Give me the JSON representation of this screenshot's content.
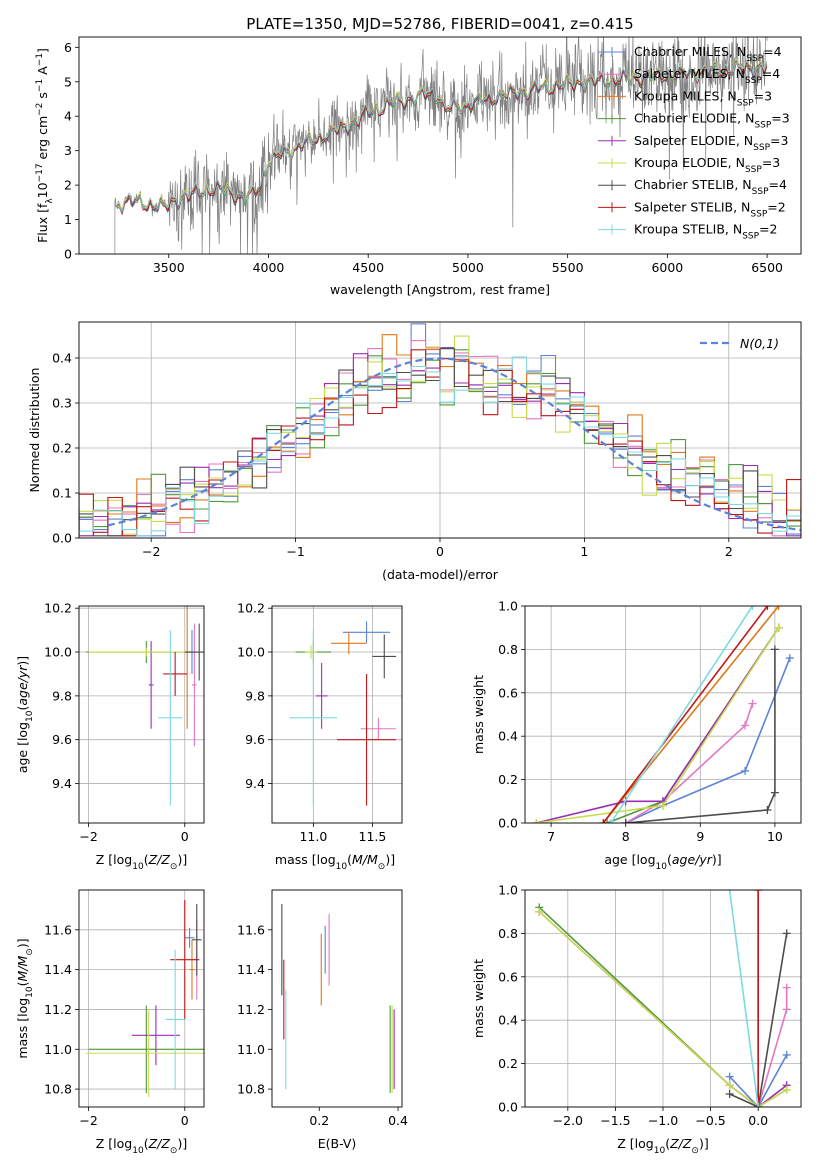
{
  "title": "PLATE=1350, MJD=52786, FIBERID=0041, z=0.415",
  "colors": {
    "chabrier_miles": "#5b84d6",
    "salpeter_miles": "#e377c2",
    "kroupa_miles": "#e0781a",
    "chabrier_elodie": "#4f9a3c",
    "salpeter_elodie": "#9a2fb5",
    "kroupa_elodie": "#c9dc4d",
    "chabrier_stelib": "#4d4d4d",
    "salpeter_stelib": "#c01818",
    "kroupa_stelib": "#7fd9e0",
    "data": "#808080",
    "normal": "#5b84d6"
  },
  "chart_data": [
    {
      "id": "spectrum",
      "type": "line",
      "xlabel": "wavelength [Angstrom, rest frame]",
      "ylabel": "Flux [f_λ 10^-17 erg cm^-2 s^-1 A^-1]",
      "xlim": [
        3050,
        6670
      ],
      "ylim": [
        0,
        6.3
      ],
      "xticks": [
        3500,
        4000,
        4500,
        5000,
        5500,
        6000,
        6500
      ],
      "yticks": [
        0,
        1,
        2,
        3,
        4,
        5,
        6
      ],
      "legend_position": "upper-right",
      "continuum_anchor_points": {
        "wavelength": [
          3230,
          3280,
          3400,
          3480,
          3520,
          3600,
          3700,
          3800,
          3870,
          3920,
          3960,
          4000,
          4100,
          4200,
          4300,
          4400,
          4500,
          4600,
          4700,
          4800,
          4860,
          4880,
          5000,
          5200,
          5400,
          5600,
          5800,
          6000,
          6200,
          6400,
          6500
        ],
        "flux": [
          1.35,
          1.55,
          1.45,
          1.35,
          1.55,
          1.7,
          1.9,
          1.85,
          1.6,
          1.75,
          2.0,
          2.7,
          3.0,
          3.25,
          3.5,
          3.75,
          4.1,
          4.35,
          4.5,
          4.65,
          4.6,
          4.2,
          4.35,
          4.65,
          4.85,
          5.0,
          5.1,
          5.2,
          5.3,
          5.4,
          5.45
        ]
      },
      "series": [
        {
          "name": "Chabrier MILES, N_SSP=4",
          "color_key": "chabrier_miles"
        },
        {
          "name": "Salpeter MILES, N_SSP=4",
          "color_key": "salpeter_miles"
        },
        {
          "name": "Kroupa MILES, N_SSP=3",
          "color_key": "kroupa_miles"
        },
        {
          "name": "Chabrier ELODIE, N_SSP=3",
          "color_key": "chabrier_elodie"
        },
        {
          "name": "Salpeter ELODIE, N_SSP=3",
          "color_key": "salpeter_elodie"
        },
        {
          "name": "Kroupa ELODIE, N_SSP=3",
          "color_key": "kroupa_elodie"
        },
        {
          "name": "Chabrier STELIB, N_SSP=4",
          "color_key": "chabrier_stelib"
        },
        {
          "name": "Salpeter STELIB, N_SSP=2",
          "color_key": "salpeter_stelib"
        },
        {
          "name": "Kroupa STELIB, N_SSP=2",
          "color_key": "kroupa_stelib"
        }
      ]
    },
    {
      "id": "residuals",
      "type": "histogram",
      "xlabel": "(data-model)/error",
      "ylabel": "Normed distribution",
      "xlim": [
        -2.5,
        2.5
      ],
      "ylim": [
        0,
        0.48
      ],
      "xticks": [
        -2,
        -1,
        0,
        1,
        2
      ],
      "yticks": [
        0.0,
        0.1,
        0.2,
        0.3,
        0.4
      ],
      "bin_width": 0.1,
      "grid": true,
      "legend_position": "upper-right",
      "gaussian_label": "N(0,1)",
      "envelope": {
        "x": [
          -2.5,
          -2.0,
          -1.7,
          -1.5,
          -1.2,
          -1.0,
          -0.8,
          -0.6,
          -0.5,
          -0.3,
          -0.1,
          0.0,
          0.2,
          0.5,
          0.8,
          1.0,
          1.3,
          1.5,
          1.8,
          2.0,
          2.3,
          2.5
        ],
        "y": [
          0.025,
          0.06,
          0.09,
          0.13,
          0.18,
          0.25,
          0.26,
          0.33,
          0.36,
          0.33,
          0.39,
          0.4,
          0.37,
          0.33,
          0.31,
          0.27,
          0.2,
          0.15,
          0.12,
          0.1,
          0.06,
          0.04
        ]
      }
    },
    {
      "id": "age_vs_Z",
      "type": "errorbar",
      "xlabel": "Z [log10(Z/Z⊙)]",
      "ylabel": "age  [log10(age/yr)]",
      "xlim": [
        -2.2,
        0.4
      ],
      "ylim": [
        9.22,
        10.21
      ],
      "xticks": [
        -2,
        0
      ],
      "yticks": [
        9.4,
        9.6,
        9.8,
        10.0,
        10.2
      ],
      "grid": true,
      "points": [
        {
          "c": "chabrier_miles",
          "x": 0.15,
          "y": 10.0,
          "xerr": 0.05,
          "yerr": 0.1
        },
        {
          "c": "salpeter_miles",
          "x": 0.2,
          "y": 9.85,
          "xerr": 0.05,
          "yerr": 0.28
        },
        {
          "c": "kroupa_miles",
          "x": 0.05,
          "y": 10.0,
          "xerr": 0.07,
          "yerr": 0.35
        },
        {
          "c": "chabrier_elodie",
          "x": -0.8,
          "y": 10.0,
          "xerr": 1.25,
          "yerr": 0.05
        },
        {
          "c": "salpeter_elodie",
          "x": -0.7,
          "y": 9.85,
          "xerr": 0.05,
          "yerr": 0.2
        },
        {
          "c": "kroupa_elodie",
          "x": -0.8,
          "y": 10.0,
          "xerr": 1.2,
          "yerr": 0.02
        },
        {
          "c": "chabrier_stelib",
          "x": 0.3,
          "y": 10.0,
          "xerr": 0.3,
          "yerr": 0.13
        },
        {
          "c": "salpeter_stelib",
          "x": -0.2,
          "y": 9.9,
          "xerr": 0.25,
          "yerr": 0.1
        },
        {
          "c": "kroupa_stelib",
          "x": -0.3,
          "y": 9.7,
          "xerr": 0.25,
          "yerr": 0.4
        }
      ]
    },
    {
      "id": "age_vs_mass",
      "type": "errorbar",
      "xlabel": "mass [log10(M/M⊙)]",
      "ylabel": "",
      "xlim": [
        10.65,
        11.75
      ],
      "ylim": [
        9.22,
        10.21
      ],
      "xticks": [
        11.0,
        11.5
      ],
      "yticks": [
        9.4,
        9.6,
        9.8,
        10.0,
        10.2
      ],
      "grid": true,
      "points": [
        {
          "c": "chabrier_miles",
          "x": 11.45,
          "y": 10.09,
          "xerr": 0.2,
          "yerr": 0.05
        },
        {
          "c": "salpeter_miles",
          "x": 11.55,
          "y": 9.65,
          "xerr": 0.15,
          "yerr": 0.05
        },
        {
          "c": "kroupa_miles",
          "x": 11.3,
          "y": 10.04,
          "xerr": 0.15,
          "yerr": 0.05
        },
        {
          "c": "chabrier_elodie",
          "x": 11.0,
          "y": 10.0,
          "xerr": 0.15,
          "yerr": 0.05
        },
        {
          "c": "salpeter_elodie",
          "x": 11.07,
          "y": 9.8,
          "xerr": 0.05,
          "yerr": 0.15
        },
        {
          "c": "kroupa_elodie",
          "x": 10.98,
          "y": 10.0,
          "xerr": 0.05,
          "yerr": 0.03
        },
        {
          "c": "chabrier_stelib",
          "x": 11.6,
          "y": 9.98,
          "xerr": 0.1,
          "yerr": 0.1
        },
        {
          "c": "salpeter_stelib",
          "x": 11.45,
          "y": 9.6,
          "xerr": 0.25,
          "yerr": 0.3
        },
        {
          "c": "kroupa_stelib",
          "x": 11.0,
          "y": 9.7,
          "xerr": 0.2,
          "yerr": 0.4
        }
      ]
    },
    {
      "id": "massweight_vs_age",
      "type": "line",
      "xlabel": "age  [log10(age/yr)]",
      "ylabel": "mass weight",
      "xlim": [
        6.65,
        10.35
      ],
      "ylim": [
        0,
        1.0
      ],
      "xticks": [
        7,
        8,
        9,
        10
      ],
      "yticks": [
        0.0,
        0.2,
        0.4,
        0.6,
        0.8,
        1.0
      ],
      "grid": true,
      "series": [
        {
          "c": "chabrier_miles",
          "x": [
            8.0,
            8.5,
            9.6,
            10.2
          ],
          "y": [
            0.0,
            0.08,
            0.24,
            0.76
          ]
        },
        {
          "c": "salpeter_miles",
          "x": [
            8.0,
            8.5,
            9.6,
            9.7
          ],
          "y": [
            0.0,
            0.1,
            0.45,
            0.55
          ]
        },
        {
          "c": "kroupa_miles",
          "x": [
            7.7,
            10.05
          ],
          "y": [
            0.0,
            1.0
          ]
        },
        {
          "c": "chabrier_elodie",
          "x": [
            7.75,
            8.5,
            10.05
          ],
          "y": [
            0.0,
            0.1,
            0.9
          ]
        },
        {
          "c": "salpeter_elodie",
          "x": [
            6.8,
            8.0,
            8.5,
            10.05
          ],
          "y": [
            0.0,
            0.1,
            0.1,
            0.9
          ]
        },
        {
          "c": "kroupa_elodie",
          "x": [
            6.8,
            8.5,
            10.05
          ],
          "y": [
            0.0,
            0.08,
            0.9
          ]
        },
        {
          "c": "chabrier_stelib",
          "x": [
            8.0,
            9.9,
            10.0,
            10.0
          ],
          "y": [
            0.0,
            0.06,
            0.14,
            0.8
          ]
        },
        {
          "c": "salpeter_stelib",
          "x": [
            7.7,
            9.9
          ],
          "y": [
            0.0,
            1.0
          ]
        },
        {
          "c": "kroupa_stelib",
          "x": [
            7.8,
            9.7
          ],
          "y": [
            0.0,
            1.0
          ]
        }
      ]
    },
    {
      "id": "mass_vs_Z",
      "type": "errorbar",
      "xlabel": "Z [log10(Z/Z⊙)]",
      "ylabel": "mass [log10(M/M⊙)]",
      "xlim": [
        -2.2,
        0.4
      ],
      "ylim": [
        10.71,
        11.8
      ],
      "xticks": [
        -2,
        0
      ],
      "yticks": [
        10.8,
        11.0,
        11.2,
        11.4,
        11.6
      ],
      "grid": true,
      "points": [
        {
          "c": "chabrier_miles",
          "x": 0.1,
          "y": 11.56,
          "xerr": 0.1,
          "yerr": 0.05
        },
        {
          "c": "salpeter_miles",
          "x": 0.25,
          "y": 11.45,
          "xerr": 0.05,
          "yerr": 0.2
        },
        {
          "c": "kroupa_miles",
          "x": 0.15,
          "y": 11.4,
          "xerr": 0.05,
          "yerr": 0.15
        },
        {
          "c": "chabrier_elodie",
          "x": -0.8,
          "y": 11.0,
          "xerr": 1.2,
          "yerr": 0.22
        },
        {
          "c": "salpeter_elodie",
          "x": -0.6,
          "y": 11.07,
          "xerr": 0.5,
          "yerr": 0.15
        },
        {
          "c": "kroupa_elodie",
          "x": -0.75,
          "y": 10.98,
          "xerr": 1.3,
          "yerr": 0.22
        },
        {
          "c": "chabrier_stelib",
          "x": 0.25,
          "y": 11.55,
          "xerr": 0.1,
          "yerr": 0.18
        },
        {
          "c": "salpeter_stelib",
          "x": 0.0,
          "y": 11.45,
          "xerr": 0.3,
          "yerr": 0.3
        },
        {
          "c": "kroupa_stelib",
          "x": -0.2,
          "y": 11.15,
          "xerr": 0.2,
          "yerr": 0.35
        }
      ]
    },
    {
      "id": "mass_vs_EBV",
      "type": "errorbar",
      "xlabel": "E(B-V)",
      "ylabel": "",
      "xlim": [
        0.08,
        0.41
      ],
      "ylim": [
        10.71,
        11.8
      ],
      "xticks": [
        0.2,
        0.4
      ],
      "yticks": [
        10.8,
        11.0,
        11.2,
        11.4,
        11.6
      ],
      "grid": false,
      "points": [
        {
          "c": "chabrier_miles",
          "x": 0.215,
          "y": 11.5,
          "yerr": 0.12
        },
        {
          "c": "salpeter_miles",
          "x": 0.225,
          "y": 11.5,
          "yerr": 0.18
        },
        {
          "c": "kroupa_miles",
          "x": 0.205,
          "y": 11.4,
          "yerr": 0.18
        },
        {
          "c": "chabrier_elodie",
          "x": 0.38,
          "y": 11.0,
          "yerr": 0.22
        },
        {
          "c": "salpeter_elodie",
          "x": 0.39,
          "y": 11.0,
          "yerr": 0.2
        },
        {
          "c": "kroupa_elodie",
          "x": 0.385,
          "y": 11.0,
          "yerr": 0.22
        },
        {
          "c": "chabrier_stelib",
          "x": 0.105,
          "y": 11.5,
          "yerr": 0.23
        },
        {
          "c": "salpeter_stelib",
          "x": 0.11,
          "y": 11.25,
          "yerr": 0.2
        },
        {
          "c": "kroupa_stelib",
          "x": 0.115,
          "y": 11.05,
          "yerr": 0.25
        }
      ]
    },
    {
      "id": "massweight_vs_Z",
      "type": "line",
      "xlabel": "Z [log10(Z/Z⊙)]",
      "ylabel": "mass weight",
      "xlim": [
        -2.45,
        0.45
      ],
      "ylim": [
        0,
        1.0
      ],
      "xticks": [
        -2.0,
        -1.5,
        -1.0,
        -0.5,
        0.0
      ],
      "yticks": [
        0.0,
        0.2,
        0.4,
        0.6,
        0.8,
        1.0
      ],
      "grid": true,
      "series": [
        {
          "c": "chabrier_miles",
          "x": [
            -0.3,
            0.0,
            0.3
          ],
          "y": [
            0.14,
            0.0,
            0.24
          ]
        },
        {
          "c": "salpeter_miles",
          "x": [
            0.0,
            0.3,
            0.3
          ],
          "y": [
            0.0,
            0.45,
            0.55
          ]
        },
        {
          "c": "kroupa_miles",
          "x": [
            0.0,
            0.0
          ],
          "y": [
            0.0,
            1.0
          ]
        },
        {
          "c": "chabrier_elodie",
          "x": [
            -2.3,
            -0.3,
            0.0,
            0.3
          ],
          "y": [
            0.92,
            0.1,
            0.0,
            0.08
          ]
        },
        {
          "c": "salpeter_elodie",
          "x": [
            -2.3,
            -0.3,
            0.0,
            0.3
          ],
          "y": [
            0.9,
            0.1,
            0.0,
            0.1
          ]
        },
        {
          "c": "kroupa_elodie",
          "x": [
            -2.3,
            -0.3,
            0.0,
            0.3
          ],
          "y": [
            0.9,
            0.1,
            0.0,
            0.08
          ]
        },
        {
          "c": "chabrier_stelib",
          "x": [
            -0.3,
            0.0,
            0.3
          ],
          "y": [
            0.06,
            0.0,
            0.8
          ]
        },
        {
          "c": "salpeter_stelib",
          "x": [
            0.0,
            0.0
          ],
          "y": [
            0.0,
            1.0
          ]
        },
        {
          "c": "kroupa_stelib",
          "x": [
            -0.3,
            0.0
          ],
          "y": [
            1.0,
            0.0
          ]
        }
      ]
    }
  ]
}
